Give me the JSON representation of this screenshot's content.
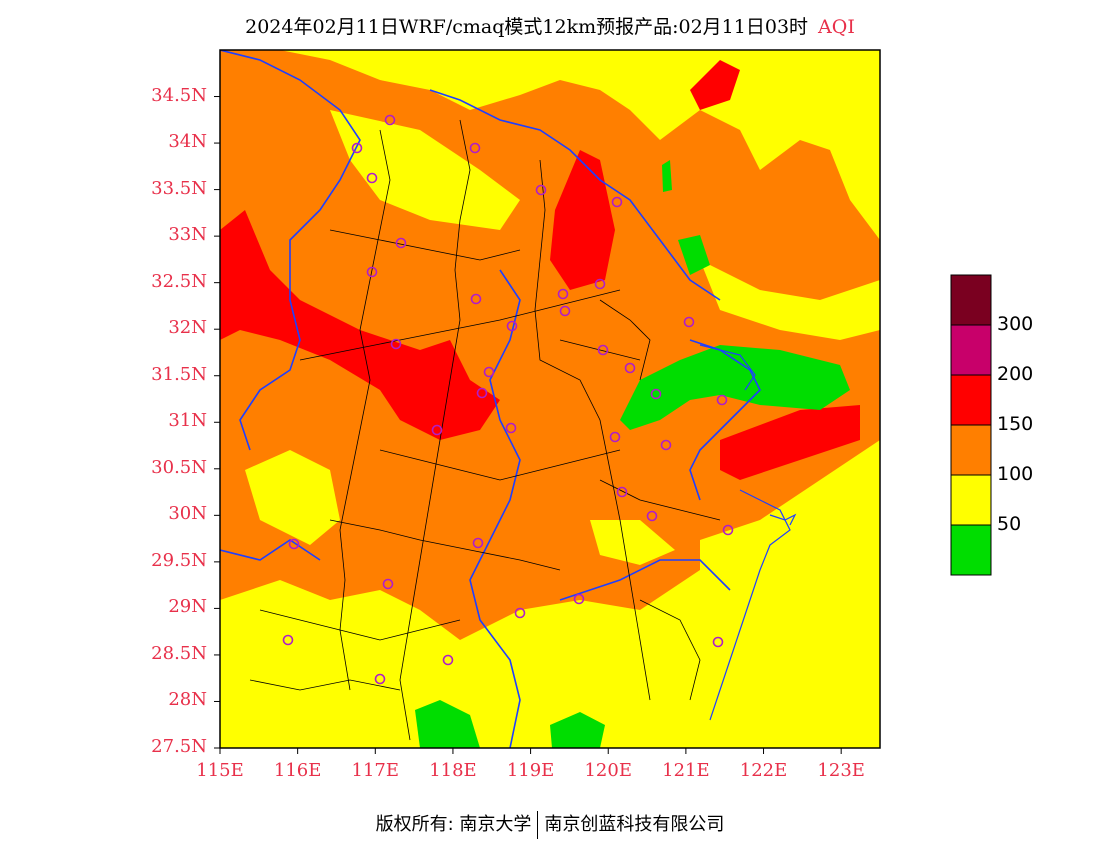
{
  "title": {
    "text": "2024年02月11日WRF/cmaq模式12km预报产品:02月11日03时",
    "variable": "AQI",
    "variable_color": "#e8304a"
  },
  "map": {
    "lon_range": [
      115,
      123.5
    ],
    "lat_range": [
      27.5,
      35.0
    ],
    "lat_labels": [
      "34.5N",
      "34N",
      "33.5N",
      "33N",
      "32.5N",
      "32N",
      "31.5N",
      "31N",
      "30.5N",
      "30N",
      "29.5N",
      "29N",
      "28.5N",
      "28N",
      "27.5N"
    ],
    "lon_labels": [
      "115E",
      "116E",
      "117E",
      "118E",
      "119E",
      "120E",
      "121E",
      "122E",
      "123E"
    ],
    "label_color": "#e8304a",
    "boundary_color_province": "#1f3fff",
    "boundary_color_city": "#000000",
    "station_marker_color": "#b01ec8",
    "station_count": 34
  },
  "legend": {
    "bins": [
      {
        "label": "300",
        "color": "#7a0020"
      },
      {
        "label": "200",
        "color": "#c8006a"
      },
      {
        "label": "150",
        "color": "#ff0000"
      },
      {
        "label": "100",
        "color": "#ff7f00"
      },
      {
        "label": "50",
        "color": "#ffff00"
      },
      {
        "label": "",
        "color": "#00dd00"
      }
    ]
  },
  "footer": {
    "copyright": "版权所有: 南京大学",
    "company": "南京创蓝科技有限公司"
  }
}
